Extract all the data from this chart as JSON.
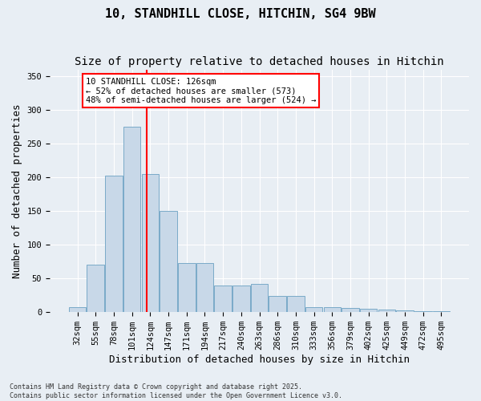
{
  "title_line1": "10, STANDHILL CLOSE, HITCHIN, SG4 9BW",
  "title_line2": "Size of property relative to detached houses in Hitchin",
  "xlabel": "Distribution of detached houses by size in Hitchin",
  "ylabel": "Number of detached properties",
  "bar_values": [
    7,
    70,
    203,
    275,
    205,
    150,
    73,
    73,
    40,
    40,
    42,
    24,
    24,
    7,
    7,
    6,
    5,
    4,
    3,
    2,
    2
  ],
  "bar_labels": [
    "32sqm",
    "55sqm",
    "78sqm",
    "101sqm",
    "124sqm",
    "147sqm",
    "171sqm",
    "194sqm",
    "217sqm",
    "240sqm",
    "263sqm",
    "286sqm",
    "310sqm",
    "333sqm",
    "356sqm",
    "379sqm",
    "402sqm",
    "425sqm",
    "449sqm",
    "472sqm",
    "495sqm"
  ],
  "bar_color": "#c8d8e8",
  "bar_edgecolor": "#7aaac8",
  "vline_x": 3.8,
  "vline_color": "red",
  "annotation_text": "10 STANDHILL CLOSE: 126sqm\n← 52% of detached houses are smaller (573)\n48% of semi-detached houses are larger (524) →",
  "ylim": [
    0,
    360
  ],
  "yticks": [
    0,
    50,
    100,
    150,
    200,
    250,
    300,
    350
  ],
  "bg_color": "#e8eef4",
  "plot_bg_color": "#e8eef4",
  "footnote": "Contains HM Land Registry data © Crown copyright and database right 2025.\nContains public sector information licensed under the Open Government Licence v3.0.",
  "title_fontsize": 11,
  "subtitle_fontsize": 10,
  "label_fontsize": 9,
  "tick_fontsize": 7.5
}
